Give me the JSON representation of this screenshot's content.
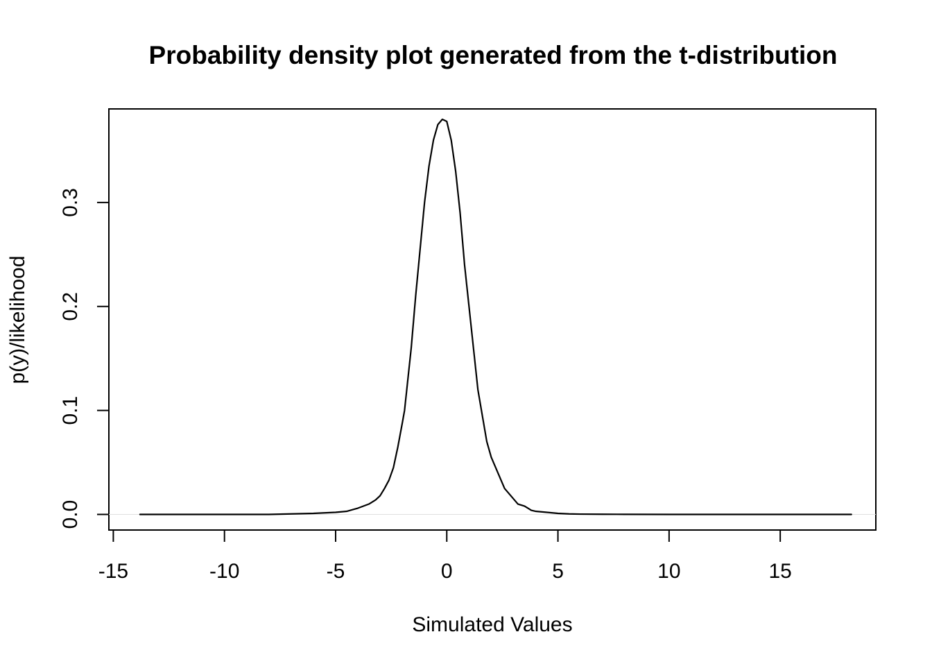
{
  "chart_data": {
    "type": "line",
    "title": "Probability density plot generated from the t-distribution",
    "xlabel": "Simulated Values",
    "ylabel": "p(y)/likelihood",
    "xlim": [
      -15.2,
      19.3
    ],
    "ylim": [
      -0.015,
      0.39
    ],
    "x_ticks": [
      -15,
      -10,
      -5,
      0,
      5,
      10,
      15
    ],
    "y_ticks": [
      0.0,
      0.1,
      0.2,
      0.3
    ],
    "x_tick_labels": [
      "-15",
      "-10",
      "-5",
      "0",
      "5",
      "10",
      "15"
    ],
    "y_tick_labels": [
      "0.0",
      "0.1",
      "0.2",
      "0.3"
    ],
    "grid": false,
    "legend": "none",
    "baseline": 0,
    "series": [
      {
        "x": [
          -13.8,
          -12,
          -10,
          -8,
          -7,
          -6,
          -5.5,
          -5,
          -4.5,
          -4,
          -3.5,
          -3.2,
          -3.0,
          -2.8,
          -2.6,
          -2.4,
          -2.2,
          -2.0,
          -1.9,
          -1.8,
          -1.6,
          -1.4,
          -1.2,
          -1.0,
          -0.8,
          -0.6,
          -0.4,
          -0.2,
          0.0,
          0.2,
          0.4,
          0.6,
          0.8,
          1.0,
          1.2,
          1.4,
          1.6,
          1.8,
          2.0,
          2.2,
          2.4,
          2.6,
          2.8,
          3.0,
          3.2,
          3.5,
          3.8,
          4.0,
          4.5,
          5.0,
          5.5,
          6.0,
          7.0,
          8.0,
          10.0,
          12.0,
          14.0,
          16.0,
          18.2
        ],
        "y": [
          0.0,
          0.0,
          0.0,
          0.0,
          0.0005,
          0.001,
          0.0015,
          0.002,
          0.003,
          0.006,
          0.01,
          0.014,
          0.018,
          0.025,
          0.033,
          0.045,
          0.065,
          0.088,
          0.1,
          0.12,
          0.16,
          0.21,
          0.255,
          0.3,
          0.335,
          0.36,
          0.375,
          0.38,
          0.378,
          0.36,
          0.33,
          0.29,
          0.24,
          0.2,
          0.16,
          0.12,
          0.095,
          0.07,
          0.055,
          0.045,
          0.035,
          0.025,
          0.02,
          0.015,
          0.01,
          0.008,
          0.004,
          0.003,
          0.002,
          0.001,
          0.0005,
          0.0003,
          0.0002,
          0.0001,
          0.0,
          0.0,
          0.0,
          0.0,
          0.0
        ]
      }
    ]
  }
}
